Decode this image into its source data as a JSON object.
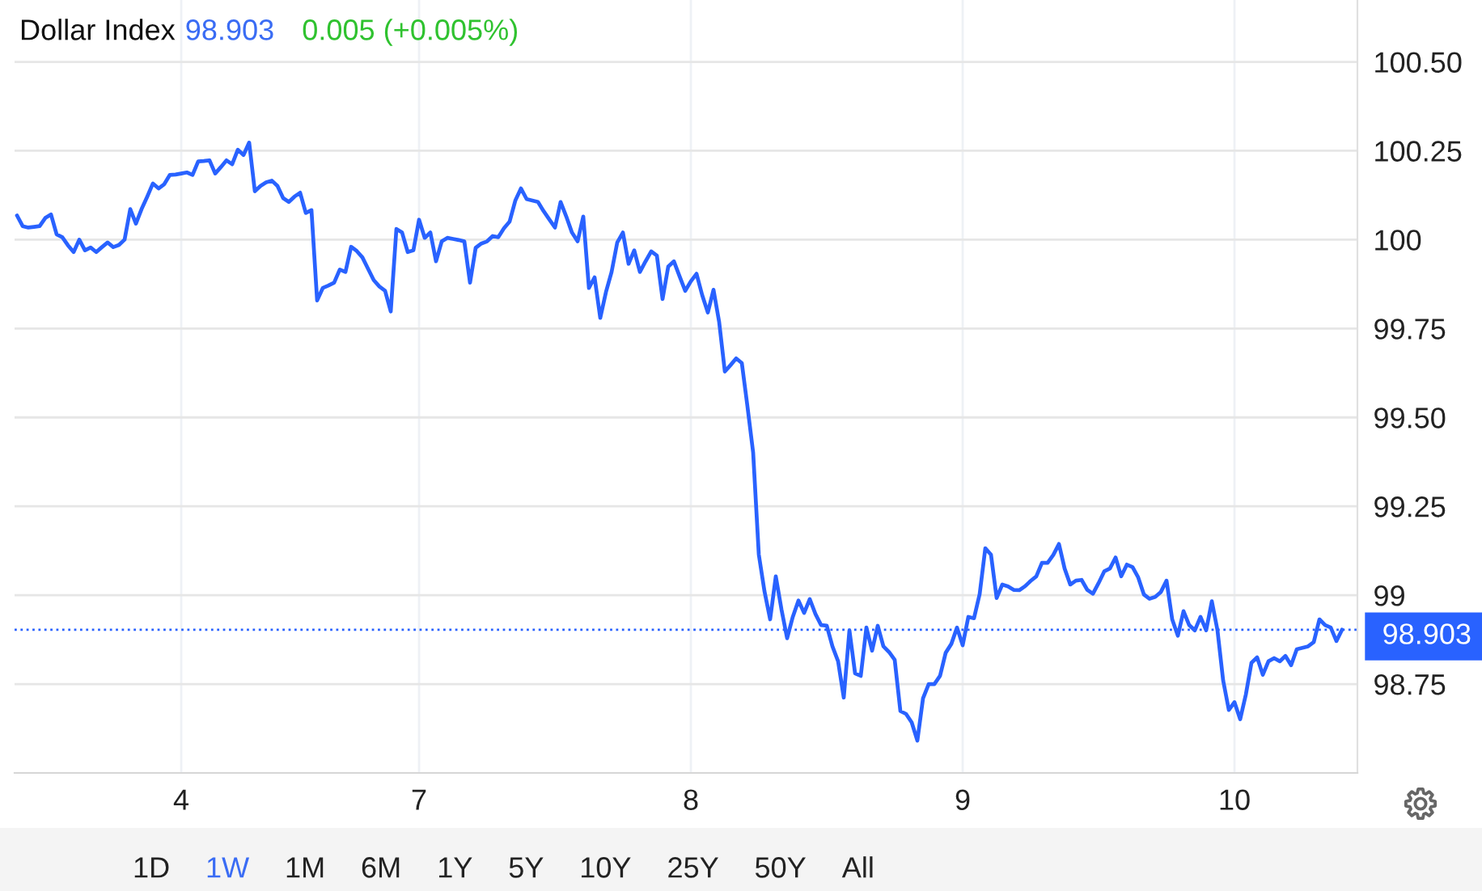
{
  "chart_data": {
    "type": "line",
    "title": "Dollar Index",
    "annotations": [
      "98.903",
      "0.005 (+0.005%)",
      "1D",
      "1W",
      "1M",
      "6M",
      "1Y",
      "5Y",
      "10Y",
      "25Y",
      "50Y",
      "All"
    ],
    "categories": [
      null,
      null,
      null,
      null,
      null,
      null,
      null,
      null,
      null,
      null,
      null,
      null,
      null,
      null,
      null,
      null,
      null,
      null,
      null,
      null,
      null,
      null,
      null,
      null,
      null,
      null,
      null,
      null,
      null,
      "4",
      null,
      null,
      null,
      null,
      null,
      null,
      null,
      null,
      null,
      null,
      null,
      null,
      null,
      null,
      null,
      null,
      null,
      null,
      null,
      null,
      null,
      null,
      null,
      null,
      null,
      null,
      null,
      null,
      null,
      null,
      null,
      null,
      null,
      null,
      null,
      null,
      null,
      null,
      null,
      null,
      null,
      "7",
      null,
      null,
      null,
      null,
      null,
      null,
      null,
      null,
      null,
      null,
      null,
      null,
      null,
      null,
      null,
      null,
      null,
      null,
      null,
      null,
      null,
      null,
      null,
      null,
      null,
      null,
      null,
      null,
      null,
      null,
      null,
      null,
      null,
      null,
      null,
      null,
      null,
      null,
      null,
      null,
      null,
      null,
      null,
      null,
      null,
      null,
      null,
      "8",
      null,
      null,
      null,
      null,
      null,
      null,
      null,
      null,
      null,
      null,
      null,
      null,
      null,
      null,
      null,
      null,
      null,
      null,
      null,
      null,
      null,
      null,
      null,
      null,
      null,
      null,
      null,
      null,
      null,
      null,
      null,
      null,
      null,
      null,
      null,
      null,
      null,
      null,
      null,
      null,
      null,
      null,
      null,
      null,
      null,
      null,
      null,
      "9",
      null,
      null,
      null,
      null,
      null,
      null,
      null,
      null,
      null,
      null,
      null,
      null,
      null,
      null,
      null,
      null,
      null,
      null,
      null,
      null,
      null,
      null,
      null,
      null,
      null,
      null,
      null,
      null,
      null,
      null,
      null,
      null,
      null,
      null,
      null,
      null,
      null,
      null,
      null,
      null,
      null,
      null,
      null,
      null,
      null,
      null,
      null,
      "10",
      null,
      null,
      null,
      null,
      null,
      null,
      null,
      null,
      null,
      null,
      null,
      null,
      null,
      null,
      null,
      null,
      null,
      null,
      null
    ],
    "series": [
      {
        "color": "#2962ff",
        "values": [
          100.068,
          100.038,
          100.034,
          100.036,
          100.038,
          100.061,
          100.071,
          100.015,
          100.007,
          99.984,
          99.965,
          100.0,
          99.97,
          99.978,
          99.965,
          99.979,
          99.992,
          99.979,
          99.985,
          100.0,
          100.086,
          100.045,
          100.086,
          100.121,
          100.158,
          100.144,
          100.156,
          100.182,
          100.183,
          100.186,
          100.189,
          100.182,
          100.22,
          100.221,
          100.223,
          100.186,
          100.204,
          100.223,
          100.212,
          100.253,
          100.238,
          100.273,
          100.136,
          100.151,
          100.161,
          100.166,
          100.151,
          100.117,
          100.106,
          100.121,
          100.132,
          100.075,
          100.083,
          99.829,
          99.864,
          99.871,
          99.879,
          99.916,
          99.909,
          99.98,
          99.968,
          99.95,
          99.918,
          99.886,
          99.868,
          99.856,
          99.798,
          100.03,
          100.02,
          99.965,
          99.97,
          100.056,
          100.005,
          100.02,
          99.939,
          99.995,
          100.005,
          100.002,
          99.999,
          99.995,
          99.879,
          99.977,
          99.989,
          99.995,
          100.01,
          100.007,
          100.032,
          100.051,
          100.11,
          100.144,
          100.114,
          100.11,
          100.106,
          100.08,
          100.057,
          100.034,
          100.106,
          100.065,
          100.02,
          99.995,
          100.065,
          99.864,
          99.894,
          99.78,
          99.852,
          99.909,
          99.992,
          100.02,
          99.932,
          99.97,
          99.909,
          99.939,
          99.967,
          99.955,
          99.833,
          99.924,
          99.939,
          99.897,
          99.856,
          99.883,
          99.904,
          99.844,
          99.795,
          99.859,
          99.768,
          99.629,
          99.647,
          99.666,
          99.653,
          99.53,
          99.401,
          99.114,
          99.011,
          98.932,
          99.053,
          98.96,
          98.879,
          98.939,
          98.985,
          98.95,
          98.989,
          98.947,
          98.916,
          98.914,
          98.856,
          98.814,
          98.712,
          98.901,
          98.78,
          98.773,
          98.909,
          98.844,
          98.914,
          98.856,
          98.84,
          98.818,
          98.674,
          98.666,
          98.642,
          98.591,
          98.71,
          98.75,
          98.75,
          98.773,
          98.838,
          98.863,
          98.909,
          98.859,
          98.939,
          98.935,
          99.003,
          99.132,
          99.114,
          98.992,
          99.03,
          99.025,
          99.015,
          99.014,
          99.025,
          99.04,
          99.053,
          99.091,
          99.091,
          99.113,
          99.144,
          99.075,
          99.03,
          99.041,
          99.043,
          99.015,
          99.004,
          99.034,
          99.067,
          99.075,
          99.106,
          99.053,
          99.086,
          99.079,
          99.05,
          99.002,
          98.99,
          98.995,
          99.009,
          99.041,
          98.932,
          98.886,
          98.955,
          98.916,
          98.901,
          98.939,
          98.901,
          98.983,
          98.901,
          98.76,
          98.677,
          98.699,
          98.651,
          98.72,
          98.81,
          98.825,
          98.776,
          98.814,
          98.823,
          98.814,
          98.829,
          98.803,
          98.848,
          98.852,
          98.856,
          98.868,
          98.932,
          98.916,
          98.909,
          98.871,
          98.903
        ]
      }
    ],
    "ylim": [
      98.5,
      100.674
    ],
    "yticks": [
      98.75,
      99,
      99.25,
      {
        "value": 99.5,
        "label": "99.50"
      },
      99.75,
      100,
      100.25,
      {
        "value": 100.5,
        "label": "100.50"
      }
    ],
    "grid": true,
    "ref_lines": [
      {
        "axis": "y",
        "value": 98.903,
        "label": "98.903",
        "color": "#2962ff",
        "line_style": "dotted"
      }
    ]
  }
}
